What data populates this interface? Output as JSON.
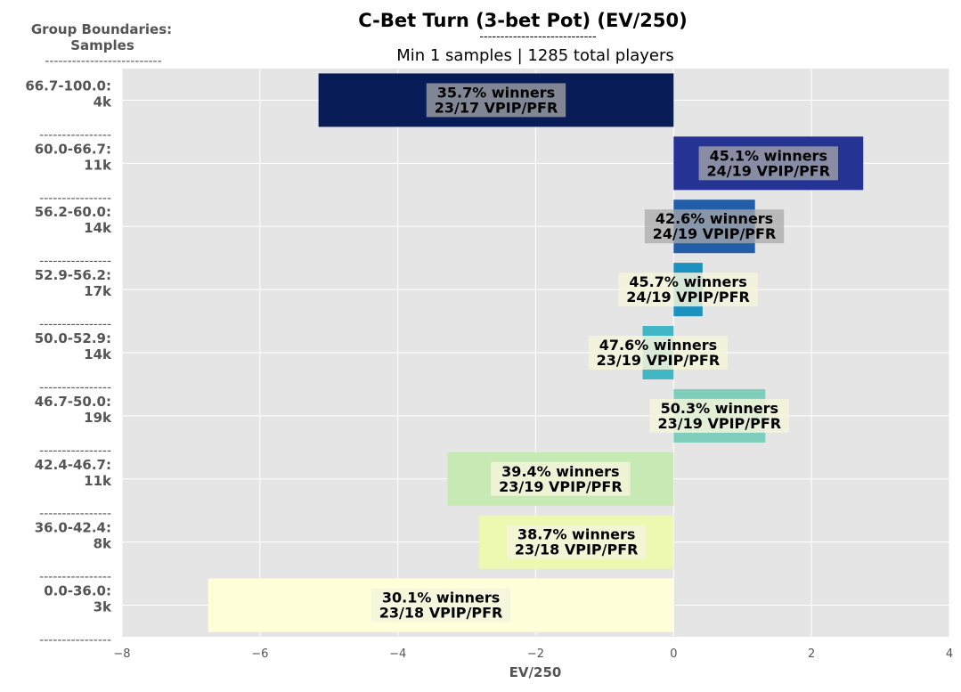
{
  "chart_data": {
    "type": "bar",
    "orientation": "horizontal",
    "title": "C-Bet Turn (3-bet Pot) (EV/250)",
    "title_rule": "----------------------------",
    "subtitle": "Min 1 samples | 1285 total players",
    "group_header": "Group Boundaries:",
    "group_header2": "Samples",
    "group_header_rule": "--------------------------",
    "separator": "----------------",
    "xlabel": "EV/250",
    "xlim": [
      -8,
      4
    ],
    "xticks": [
      "−8",
      "−6",
      "−4",
      "−2",
      "0",
      "2",
      "4"
    ],
    "xtick_values": [
      -8,
      -6,
      -4,
      -2,
      0,
      2,
      4
    ],
    "grid": true,
    "groups": [
      {
        "range": "66.7-100.0:",
        "samples": "4k",
        "value": -5.15,
        "color": "#081d58",
        "label1": "35.7% winners",
        "label2": "23/17 VPIP/PFR"
      },
      {
        "range": "60.0-66.7:",
        "samples": "11k",
        "value": 2.75,
        "color": "#253494",
        "label1": "45.1% winners",
        "label2": "24/19 VPIP/PFR"
      },
      {
        "range": "56.2-60.0:",
        "samples": "14k",
        "value": 1.18,
        "color": "#225ea8",
        "label1": "42.6% winners",
        "label2": "24/19 VPIP/PFR"
      },
      {
        "range": "52.9-56.2:",
        "samples": "17k",
        "value": 0.42,
        "color": "#1d91c0",
        "label1": "45.7% winners",
        "label2": "24/19 VPIP/PFR"
      },
      {
        "range": "50.0-52.9:",
        "samples": "14k",
        "value": -0.45,
        "color": "#41b6c4",
        "label1": "47.6% winners",
        "label2": "23/19 VPIP/PFR"
      },
      {
        "range": "46.7-50.0:",
        "samples": "19k",
        "value": 1.33,
        "color": "#7fcdbb",
        "label1": "50.3% winners",
        "label2": "23/19 VPIP/PFR"
      },
      {
        "range": "42.4-46.7:",
        "samples": "11k",
        "value": -3.28,
        "color": "#c7e9b4",
        "label1": "39.4% winners",
        "label2": "23/19 VPIP/PFR"
      },
      {
        "range": "36.0-42.4:",
        "samples": "8k",
        "value": -2.82,
        "color": "#edf8b1",
        "label1": "38.7% winners",
        "label2": "23/18 VPIP/PFR"
      },
      {
        "range": "0.0-36.0:",
        "samples": "3k",
        "value": -6.75,
        "color": "#ffffd9",
        "label1": "30.1% winners",
        "label2": "23/18 VPIP/PFR"
      }
    ],
    "label_box_colors": {
      "dark": "#a9a9a9",
      "light": "#f5f5dc"
    }
  }
}
